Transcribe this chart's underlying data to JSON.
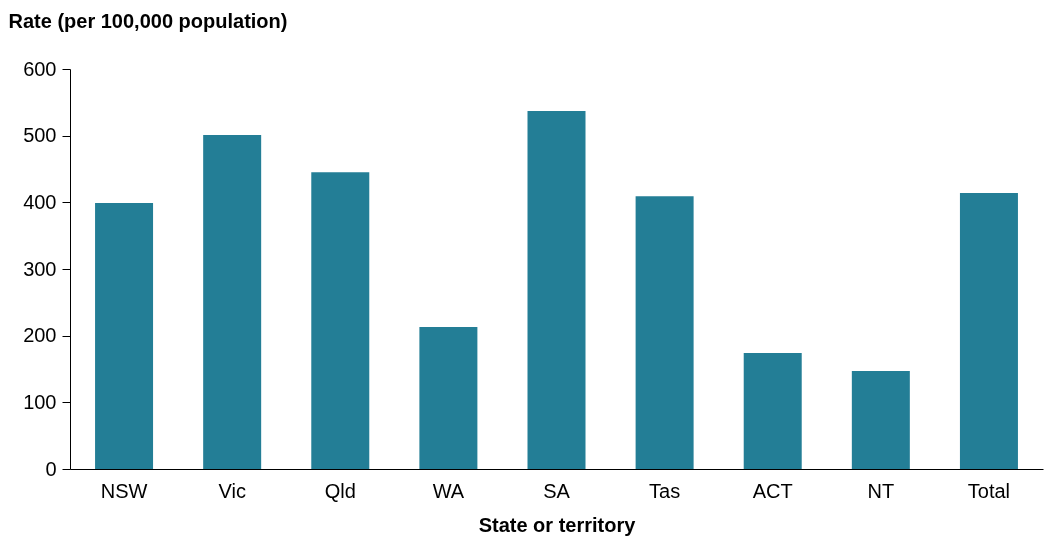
{
  "chart_data": {
    "type": "bar",
    "xlabel": "State or territory",
    "ylabel": "Rate (per 100,000 population)",
    "categories": [
      "NSW",
      "Vic",
      "Qld",
      "WA",
      "SA",
      "Tas",
      "ACT",
      "NT",
      "Total"
    ],
    "values": [
      399,
      501,
      445,
      213,
      537,
      409,
      174,
      147,
      414
    ],
    "color": "#237e96",
    "ylim": [
      0,
      600
    ],
    "yticks": [
      0,
      100,
      200,
      300,
      400,
      500,
      600
    ],
    "grid": false
  }
}
